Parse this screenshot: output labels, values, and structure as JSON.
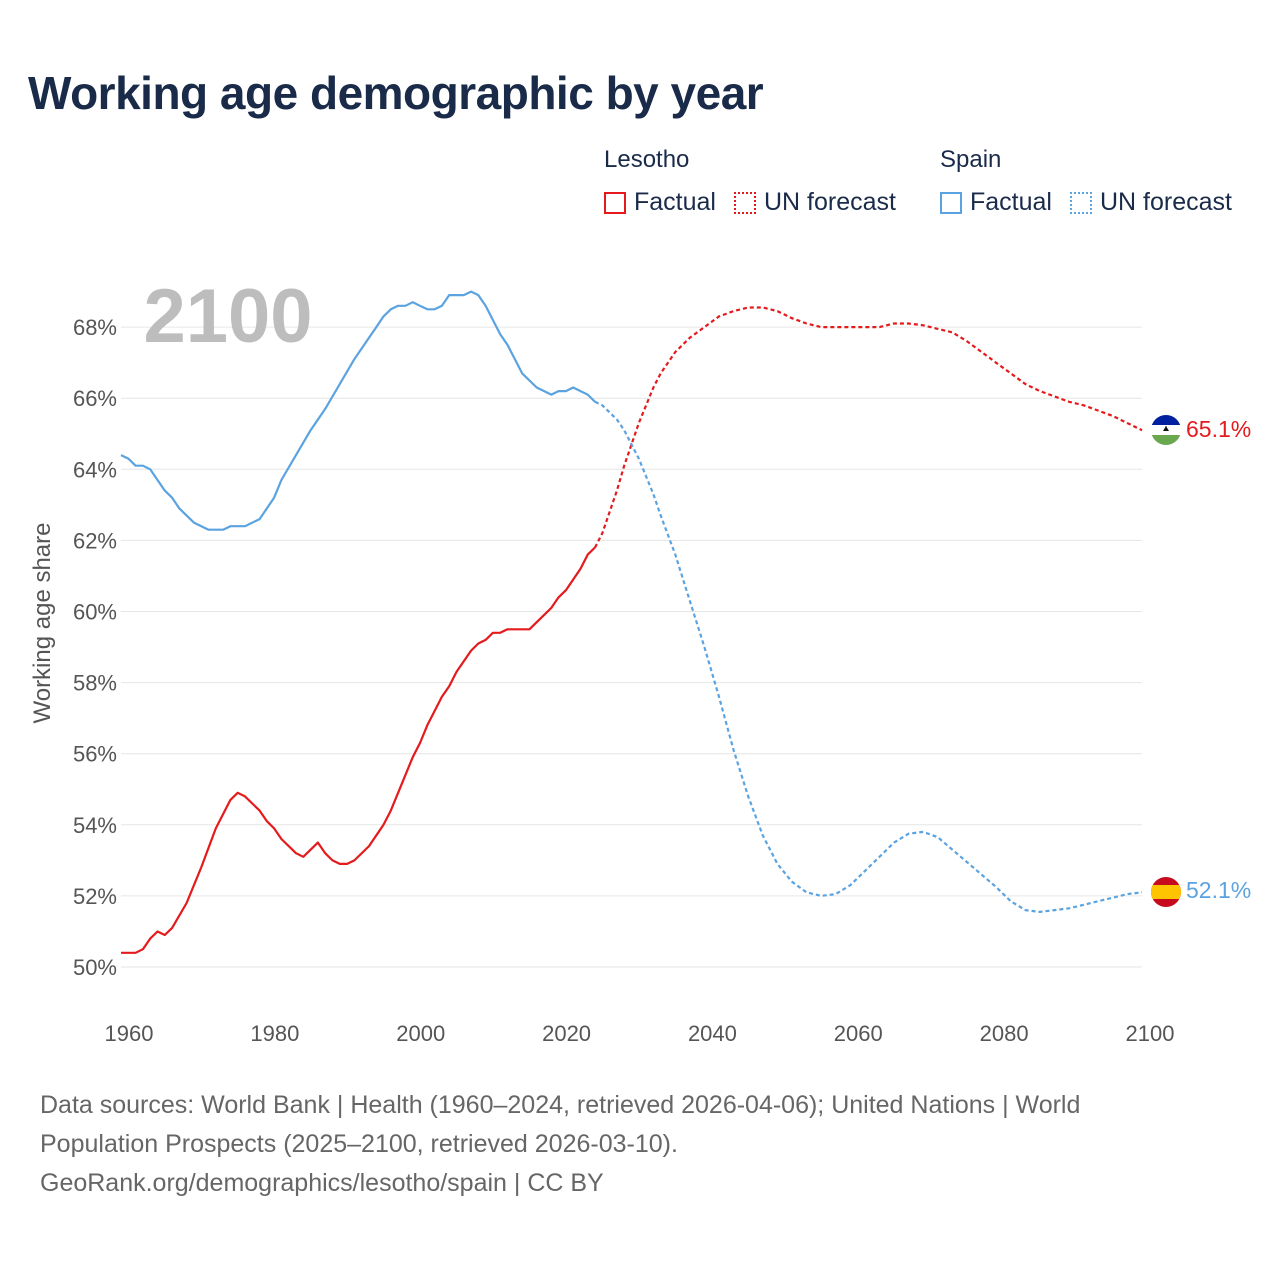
{
  "title": "Working age demographic by year",
  "legend": [
    {
      "name": "Lesotho",
      "factual": "Factual",
      "forecast": "UN forecast",
      "color": "#e41a1c"
    },
    {
      "name": "Spain",
      "factual": "Factual",
      "forecast": "UN forecast",
      "color": "#5ba3e0"
    }
  ],
  "chart_data": {
    "type": "line",
    "year_label": "2100",
    "ylabel": "Working age share",
    "xlim": [
      1960,
      2100
    ],
    "ylim": [
      49,
      70
    ],
    "x_ticks": [
      "1960",
      "1980",
      "2000",
      "2020",
      "2040",
      "2060",
      "2080",
      "2100"
    ],
    "y_ticks": [
      "50%",
      "52%",
      "54%",
      "56%",
      "58%",
      "60%",
      "62%",
      "64%",
      "66%",
      "68%"
    ],
    "series": [
      {
        "name": "Lesotho",
        "color": "#e41a1c",
        "end_label": "65.1%",
        "factual": [
          [
            1960,
            50.4
          ],
          [
            1962,
            50.4
          ],
          [
            1963,
            50.5
          ],
          [
            1964,
            50.8
          ],
          [
            1965,
            51.0
          ],
          [
            1966,
            50.9
          ],
          [
            1967,
            51.1
          ],
          [
            1969,
            51.8
          ],
          [
            1971,
            52.8
          ],
          [
            1973,
            53.9
          ],
          [
            1975,
            54.7
          ],
          [
            1976,
            54.9
          ],
          [
            1977,
            54.8
          ],
          [
            1979,
            54.4
          ],
          [
            1980,
            54.1
          ],
          [
            1981,
            53.9
          ],
          [
            1982,
            53.6
          ],
          [
            1984,
            53.2
          ],
          [
            1985,
            53.1
          ],
          [
            1986,
            53.3
          ],
          [
            1987,
            53.5
          ],
          [
            1988,
            53.2
          ],
          [
            1989,
            53.0
          ],
          [
            1990,
            52.9
          ],
          [
            1991,
            52.9
          ],
          [
            1992,
            53.0
          ],
          [
            1994,
            53.4
          ],
          [
            1996,
            54.0
          ],
          [
            1997,
            54.4
          ],
          [
            1998,
            54.9
          ],
          [
            2000,
            55.9
          ],
          [
            2001,
            56.3
          ],
          [
            2002,
            56.8
          ],
          [
            2004,
            57.6
          ],
          [
            2005,
            57.9
          ],
          [
            2006,
            58.3
          ],
          [
            2007,
            58.6
          ],
          [
            2008,
            58.9
          ],
          [
            2009,
            59.1
          ],
          [
            2010,
            59.2
          ],
          [
            2011,
            59.4
          ],
          [
            2012,
            59.4
          ],
          [
            2013,
            59.5
          ],
          [
            2014,
            59.5
          ],
          [
            2016,
            59.5
          ],
          [
            2018,
            59.9
          ],
          [
            2019,
            60.1
          ],
          [
            2020,
            60.4
          ],
          [
            2021,
            60.6
          ],
          [
            2022,
            60.9
          ],
          [
            2023,
            61.2
          ],
          [
            2024,
            61.6
          ],
          [
            2025,
            61.8
          ]
        ],
        "forecast": [
          [
            2025,
            61.8
          ],
          [
            2026,
            62.2
          ],
          [
            2027,
            62.8
          ],
          [
            2028,
            63.4
          ],
          [
            2029,
            64.1
          ],
          [
            2030,
            64.7
          ],
          [
            2031,
            65.3
          ],
          [
            2032,
            65.8
          ],
          [
            2033,
            66.3
          ],
          [
            2034,
            66.7
          ],
          [
            2035,
            67.0
          ],
          [
            2036,
            67.3
          ],
          [
            2038,
            67.7
          ],
          [
            2040,
            68.0
          ],
          [
            2042,
            68.3
          ],
          [
            2044,
            68.45
          ],
          [
            2046,
            68.55
          ],
          [
            2048,
            68.55
          ],
          [
            2050,
            68.45
          ],
          [
            2052,
            68.25
          ],
          [
            2054,
            68.1
          ],
          [
            2056,
            68.0
          ],
          [
            2058,
            68.0
          ],
          [
            2060,
            68.0
          ],
          [
            2062,
            68.0
          ],
          [
            2064,
            68.0
          ],
          [
            2066,
            68.1
          ],
          [
            2068,
            68.1
          ],
          [
            2070,
            68.05
          ],
          [
            2072,
            67.95
          ],
          [
            2074,
            67.85
          ],
          [
            2076,
            67.6
          ],
          [
            2078,
            67.3
          ],
          [
            2080,
            67.0
          ],
          [
            2082,
            66.7
          ],
          [
            2084,
            66.4
          ],
          [
            2086,
            66.2
          ],
          [
            2088,
            66.05
          ],
          [
            2090,
            65.9
          ],
          [
            2092,
            65.8
          ],
          [
            2094,
            65.65
          ],
          [
            2096,
            65.5
          ],
          [
            2098,
            65.3
          ],
          [
            2100,
            65.1
          ]
        ]
      },
      {
        "name": "Spain",
        "color": "#5ba3e0",
        "end_label": "52.1%",
        "factual": [
          [
            1960,
            64.4
          ],
          [
            1961,
            64.3
          ],
          [
            1962,
            64.1
          ],
          [
            1963,
            64.1
          ],
          [
            1964,
            64.0
          ],
          [
            1965,
            63.7
          ],
          [
            1966,
            63.4
          ],
          [
            1967,
            63.2
          ],
          [
            1968,
            62.9
          ],
          [
            1970,
            62.5
          ],
          [
            1972,
            62.3
          ],
          [
            1974,
            62.3
          ],
          [
            1975,
            62.4
          ],
          [
            1977,
            62.4
          ],
          [
            1979,
            62.6
          ],
          [
            1981,
            63.2
          ],
          [
            1982,
            63.7
          ],
          [
            1984,
            64.4
          ],
          [
            1986,
            65.1
          ],
          [
            1988,
            65.7
          ],
          [
            1990,
            66.4
          ],
          [
            1992,
            67.1
          ],
          [
            1994,
            67.7
          ],
          [
            1995,
            68.0
          ],
          [
            1996,
            68.3
          ],
          [
            1997,
            68.5
          ],
          [
            1998,
            68.6
          ],
          [
            1999,
            68.6
          ],
          [
            2000,
            68.7
          ],
          [
            2001,
            68.6
          ],
          [
            2002,
            68.5
          ],
          [
            2003,
            68.5
          ],
          [
            2004,
            68.6
          ],
          [
            2005,
            68.9
          ],
          [
            2006,
            68.9
          ],
          [
            2007,
            68.9
          ],
          [
            2008,
            69.0
          ],
          [
            2009,
            68.9
          ],
          [
            2010,
            68.6
          ],
          [
            2012,
            67.8
          ],
          [
            2013,
            67.5
          ],
          [
            2015,
            66.7
          ],
          [
            2017,
            66.3
          ],
          [
            2019,
            66.1
          ],
          [
            2020,
            66.2
          ],
          [
            2021,
            66.2
          ],
          [
            2022,
            66.3
          ],
          [
            2023,
            66.2
          ],
          [
            2024,
            66.1
          ],
          [
            2025,
            65.9
          ]
        ],
        "forecast": [
          [
            2025,
            65.9
          ],
          [
            2026,
            65.8
          ],
          [
            2027,
            65.6
          ],
          [
            2028,
            65.4
          ],
          [
            2029,
            65.1
          ],
          [
            2030,
            64.7
          ],
          [
            2031,
            64.3
          ],
          [
            2032,
            63.8
          ],
          [
            2033,
            63.3
          ],
          [
            2034,
            62.7
          ],
          [
            2036,
            61.6
          ],
          [
            2038,
            60.3
          ],
          [
            2040,
            59.0
          ],
          [
            2042,
            57.6
          ],
          [
            2044,
            56.1
          ],
          [
            2046,
            54.8
          ],
          [
            2048,
            53.7
          ],
          [
            2050,
            52.9
          ],
          [
            2052,
            52.4
          ],
          [
            2054,
            52.1
          ],
          [
            2056,
            52.0
          ],
          [
            2058,
            52.05
          ],
          [
            2060,
            52.3
          ],
          [
            2062,
            52.7
          ],
          [
            2064,
            53.1
          ],
          [
            2066,
            53.5
          ],
          [
            2068,
            53.75
          ],
          [
            2070,
            53.8
          ],
          [
            2072,
            53.65
          ],
          [
            2074,
            53.3
          ],
          [
            2076,
            52.95
          ],
          [
            2078,
            52.6
          ],
          [
            2080,
            52.25
          ],
          [
            2082,
            51.85
          ],
          [
            2084,
            51.6
          ],
          [
            2086,
            51.55
          ],
          [
            2088,
            51.6
          ],
          [
            2090,
            51.65
          ],
          [
            2092,
            51.75
          ],
          [
            2094,
            51.85
          ],
          [
            2096,
            51.95
          ],
          [
            2098,
            52.05
          ],
          [
            2100,
            52.1
          ]
        ]
      }
    ]
  },
  "footer": {
    "line1": "Data sources: World Bank | Health (1960–2024, retrieved 2026-04-06); United Nations | World",
    "line2": "Population Prospects (2025–2100, retrieved 2026-03-10).",
    "line3": "GeoRank.org/demographics/lesotho/spain | CC BY"
  }
}
